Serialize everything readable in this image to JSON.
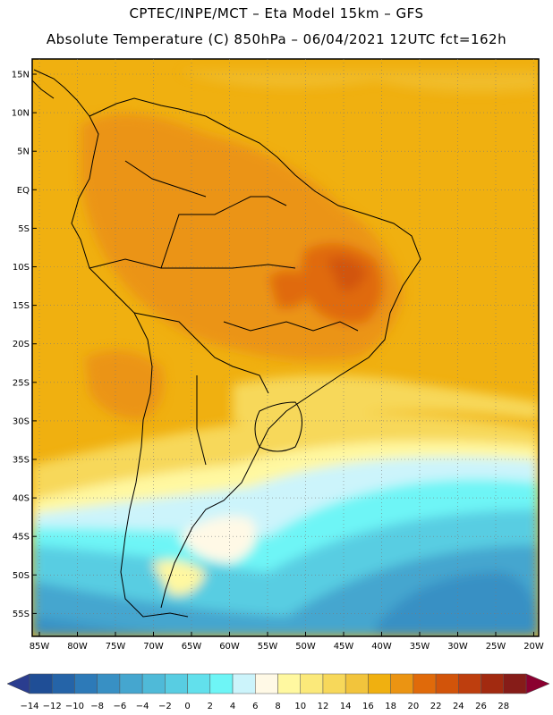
{
  "title_line1": "CPTEC/INPE/MCT –  Eta Model 15km – GFS",
  "title_line2": "Absolute Temperature (C) 850hPa – 06/04/2021 12UTC fct=162h",
  "lat_labels": [
    "15N",
    "10N",
    "5N",
    "EQ",
    "5S",
    "10S",
    "15S",
    "20S",
    "25S",
    "30S",
    "35S",
    "40S",
    "45S",
    "50S",
    "55S"
  ],
  "lon_labels": [
    "85W",
    "80W",
    "75W",
    "70W",
    "65W",
    "60W",
    "55W",
    "50W",
    "45W",
    "40W",
    "35W",
    "30W",
    "25W",
    "20W"
  ],
  "colorbar": {
    "labels": [
      "-14",
      "-12",
      "-10",
      "-8",
      "-6",
      "-4",
      "-2",
      "0",
      "2",
      "4",
      "6",
      "8",
      "10",
      "12",
      "14",
      "16",
      "18",
      "20",
      "22",
      "24",
      "26",
      "28"
    ],
    "colors": [
      "#1f4e96",
      "#2564a8",
      "#2d7ab8",
      "#3890c4",
      "#45a6cf",
      "#4fbad8",
      "#58cde2",
      "#62e0ec",
      "#6ef5f6",
      "#ccf4fb",
      "#fff9e6",
      "#fff8a0",
      "#fbe97a",
      "#f7d85a",
      "#f2c43c",
      "#f0b010",
      "#eb9412",
      "#e06a0a",
      "#d2540a",
      "#be3e0e",
      "#a22a10",
      "#861c18"
    ],
    "left_arrow_color": "#2a3d8f",
    "right_arrow_color": "#8b0030"
  }
}
